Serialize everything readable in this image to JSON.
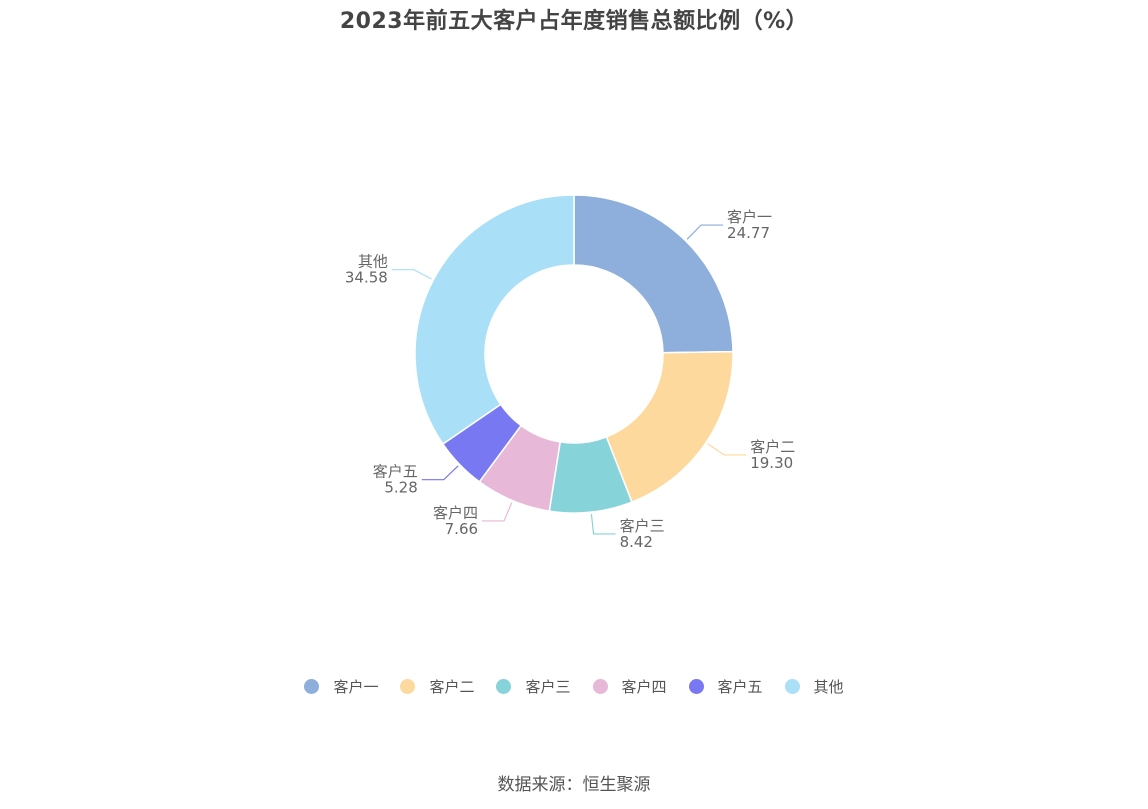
{
  "title": "2023年前五大客户占年度销售总额比例（%）",
  "source": "数据来源：恒生聚源",
  "chart_data": {
    "type": "pie",
    "variant": "donut",
    "title": "2023年前五大客户占年度销售总额比例（%）",
    "slices": [
      {
        "name": "客户一",
        "value": 24.77,
        "color": "#8eaedc"
      },
      {
        "name": "客户二",
        "value": 19.3,
        "color": "#fdd99d"
      },
      {
        "name": "客户三",
        "value": 8.42,
        "color": "#86d4d9"
      },
      {
        "name": "客户四",
        "value": 7.66,
        "color": "#e8b8d8"
      },
      {
        "name": "客户五",
        "value": 5.28,
        "color": "#7878f2"
      },
      {
        "name": "其他",
        "value": 34.58,
        "color": "#aadff8"
      }
    ],
    "legend_position": "bottom"
  }
}
